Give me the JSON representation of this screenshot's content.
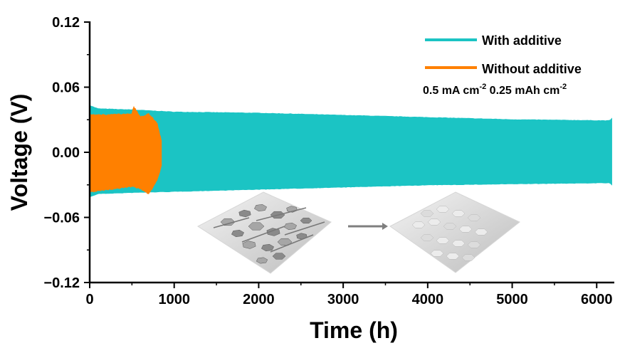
{
  "chart_data": {
    "type": "line",
    "title": "",
    "xlabel": "Time (h)",
    "ylabel": "Voltage (V)",
    "xlim": [
      0,
      6200
    ],
    "ylim": [
      -0.12,
      0.12
    ],
    "xticks": [
      0,
      1000,
      2000,
      3000,
      4000,
      5000,
      6000
    ],
    "yticks": [
      -0.12,
      -0.06,
      0.0,
      0.06,
      0.12
    ],
    "xtick_labels": [
      "0",
      "1000",
      "2000",
      "3000",
      "4000",
      "5000",
      "6000"
    ],
    "ytick_labels": [
      "−0.12",
      "−0.06",
      "0.00",
      "0.06",
      "0.12"
    ],
    "grid": false,
    "legend_position": "top-right",
    "series": [
      {
        "name": "With additive",
        "color": "#1bc4c4",
        "x_range": [
          0,
          6180
        ],
        "envelope_upper": [
          [
            0,
            0.043
          ],
          [
            100,
            0.04
          ],
          [
            500,
            0.039
          ],
          [
            1000,
            0.037
          ],
          [
            2000,
            0.036
          ],
          [
            3000,
            0.034
          ],
          [
            4000,
            0.032
          ],
          [
            5000,
            0.03
          ],
          [
            6150,
            0.029
          ],
          [
            6180,
            0.031
          ]
        ],
        "envelope_lower": [
          [
            0,
            -0.041
          ],
          [
            100,
            -0.038
          ],
          [
            500,
            -0.037
          ],
          [
            1000,
            -0.036
          ],
          [
            2000,
            -0.034
          ],
          [
            3000,
            -0.032
          ],
          [
            3500,
            -0.031
          ],
          [
            4000,
            -0.03
          ],
          [
            5000,
            -0.029
          ],
          [
            6150,
            -0.028
          ],
          [
            6180,
            -0.03
          ]
        ]
      },
      {
        "name": "Without additive",
        "color": "#ff8000",
        "x_range": [
          0,
          850
        ],
        "envelope_upper": [
          [
            0,
            0.034
          ],
          [
            200,
            0.034
          ],
          [
            500,
            0.035
          ],
          [
            520,
            0.042
          ],
          [
            600,
            0.032
          ],
          [
            700,
            0.035
          ],
          [
            800,
            0.026
          ],
          [
            850,
            0.01
          ]
        ],
        "envelope_lower": [
          [
            0,
            -0.036
          ],
          [
            200,
            -0.034
          ],
          [
            500,
            -0.031
          ],
          [
            600,
            -0.033
          ],
          [
            700,
            -0.038
          ],
          [
            800,
            -0.025
          ],
          [
            850,
            -0.012
          ]
        ]
      }
    ],
    "annotations": {
      "condition_main": "0.5 mA cm",
      "condition_sup1": "-2",
      "condition_mid": " 0.25 mAh cm",
      "condition_sup2": "-2"
    }
  }
}
